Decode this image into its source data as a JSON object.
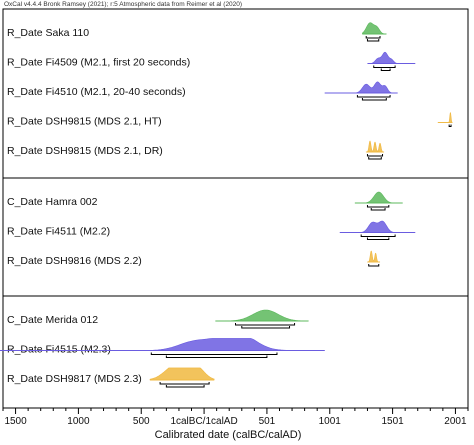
{
  "header": "OxCal v4.4.4 Bronk Ramsey (2021); r:5 Atmospheric data from Reimer et al (2020)",
  "chart_data": {
    "type": "range",
    "xlabel": "Calibrated date (calBC/calAD)",
    "xlim": [
      -1600,
      2100
    ],
    "ticks": [
      {
        "value": -1500,
        "label": "1500"
      },
      {
        "value": -1000,
        "label": "1000"
      },
      {
        "value": -500,
        "label": "500"
      },
      {
        "value": 0,
        "label": "1calBC/1calAD"
      },
      {
        "value": 500,
        "label": "501"
      },
      {
        "value": 1000,
        "label": "1001"
      },
      {
        "value": 1500,
        "label": "1501"
      },
      {
        "value": 2000,
        "label": "2001"
      }
    ],
    "colors": {
      "green": "#5cb85c",
      "blue": "#6a5ce0",
      "orange": "#f0b840",
      "axis": "#000000"
    },
    "groups": [
      {
        "rows": [
          {
            "label": "R_Date Saka 110",
            "color": "green",
            "peaks": [
              {
                "c": 1320,
                "w": 28,
                "h": 1.0
              },
              {
                "c": 1375,
                "w": 22,
                "h": 0.55
              }
            ],
            "line": [
              1260,
              1450
            ],
            "ranges": [
              [
                1290,
                1400
              ],
              [
                1300,
                1390
              ]
            ]
          },
          {
            "label": "R_Date Fi4509 (M2.1, first 20 seconds)",
            "color": "blue",
            "peaks": [
              {
                "c": 1440,
                "w": 22,
                "h": 1.0
              },
              {
                "c": 1385,
                "w": 22,
                "h": 0.45
              },
              {
                "c": 1490,
                "w": 18,
                "h": 0.35
              }
            ],
            "line": [
              1300,
              1680
            ],
            "ranges": [
              [
                1350,
                1520
              ],
              [
                1410,
                1480
              ]
            ]
          },
          {
            "label": "R_Date Fi4510 (M2.1, 20-40 seconds)",
            "color": "blue",
            "peaks": [
              {
                "c": 1290,
                "w": 30,
                "h": 0.8
              },
              {
                "c": 1380,
                "w": 26,
                "h": 1.0
              },
              {
                "c": 1440,
                "w": 20,
                "h": 0.6
              }
            ],
            "line": [
              960,
              1540
            ],
            "ranges": [
              [
                1220,
                1480
              ],
              [
                1260,
                1450
              ]
            ]
          },
          {
            "label": "R_Date DSH9815 (MDS 2.1, HT)",
            "color": "orange",
            "peaks": [
              {
                "c": 1960,
                "w": 5,
                "h": 0.9
              }
            ],
            "line": [
              1860,
              1975
            ],
            "ranges": [
              [
                1950,
                1965
              ]
            ]
          },
          {
            "label": "R_Date DSH9815 (MDS 2.1, DR)",
            "color": "orange",
            "peaks": [
              {
                "c": 1320,
                "w": 8,
                "h": 1.0
              },
              {
                "c": 1360,
                "w": 8,
                "h": 0.9
              },
              {
                "c": 1400,
                "w": 8,
                "h": 0.8
              }
            ],
            "line": [
              1290,
              1430
            ],
            "ranges": [
              [
                1300,
                1420
              ],
              [
                1310,
                1410
              ]
            ]
          }
        ]
      },
      {
        "rows": [
          {
            "label": "C_Date Hamra 002",
            "color": "green",
            "peaks": [
              {
                "c": 1390,
                "w": 38,
                "h": 1.0
              }
            ],
            "line": [
              1200,
              1580
            ],
            "ranges": [
              [
                1300,
                1470
              ],
              [
                1330,
                1440
              ]
            ]
          },
          {
            "label": "R_Date Fi4511 (M2.2)",
            "color": "blue",
            "peaks": [
              {
                "c": 1340,
                "w": 32,
                "h": 0.9
              },
              {
                "c": 1420,
                "w": 32,
                "h": 1.0
              }
            ],
            "line": [
              1080,
              1680
            ],
            "ranges": [
              [
                1250,
                1520
              ],
              [
                1300,
                1470
              ]
            ]
          },
          {
            "label": "R_Date DSH9816 (MDS 2.2)",
            "color": "orange",
            "peaks": [
              {
                "c": 1330,
                "w": 8,
                "h": 1.0
              },
              {
                "c": 1365,
                "w": 7,
                "h": 0.8
              }
            ],
            "line": [
              1300,
              1400
            ],
            "ranges": [
              [
                1310,
                1390
              ]
            ]
          }
        ]
      },
      {
        "rows": [
          {
            "label": "C_Date Merida 012",
            "color": "green",
            "peaks": [
              {
                "c": 490,
                "w": 100,
                "h": 1.0
              }
            ],
            "line": [
              90,
              830
            ],
            "ranges": [
              [
                250,
                720
              ],
              [
                300,
                680
              ]
            ]
          },
          {
            "label": "R_Date Fi4515 (M2.3)",
            "color": "blue",
            "peaks": [
              {
                "c": -100,
                "w": 120,
                "h": 0.6
              },
              {
                "c": 150,
                "w": 160,
                "h": 0.85
              },
              {
                "c": 300,
                "w": 120,
                "h": 1.0
              }
            ],
            "line": [
              -1650,
              960
            ],
            "ranges": [
              [
                -420,
                580
              ],
              [
                -300,
                500
              ]
            ]
          },
          {
            "label": "R_Date DSH9817 (MDS 2.3)",
            "color": "orange",
            "peaks": [
              {
                "c": -250,
                "w": 80,
                "h": 0.9
              },
              {
                "c": -150,
                "w": 80,
                "h": 1.0
              },
              {
                "c": -50,
                "w": 60,
                "h": 0.8
              }
            ],
            "line": [
              -430,
              80
            ],
            "ranges": [
              [
                -350,
                40
              ],
              [
                -300,
                0
              ]
            ]
          }
        ]
      }
    ]
  }
}
